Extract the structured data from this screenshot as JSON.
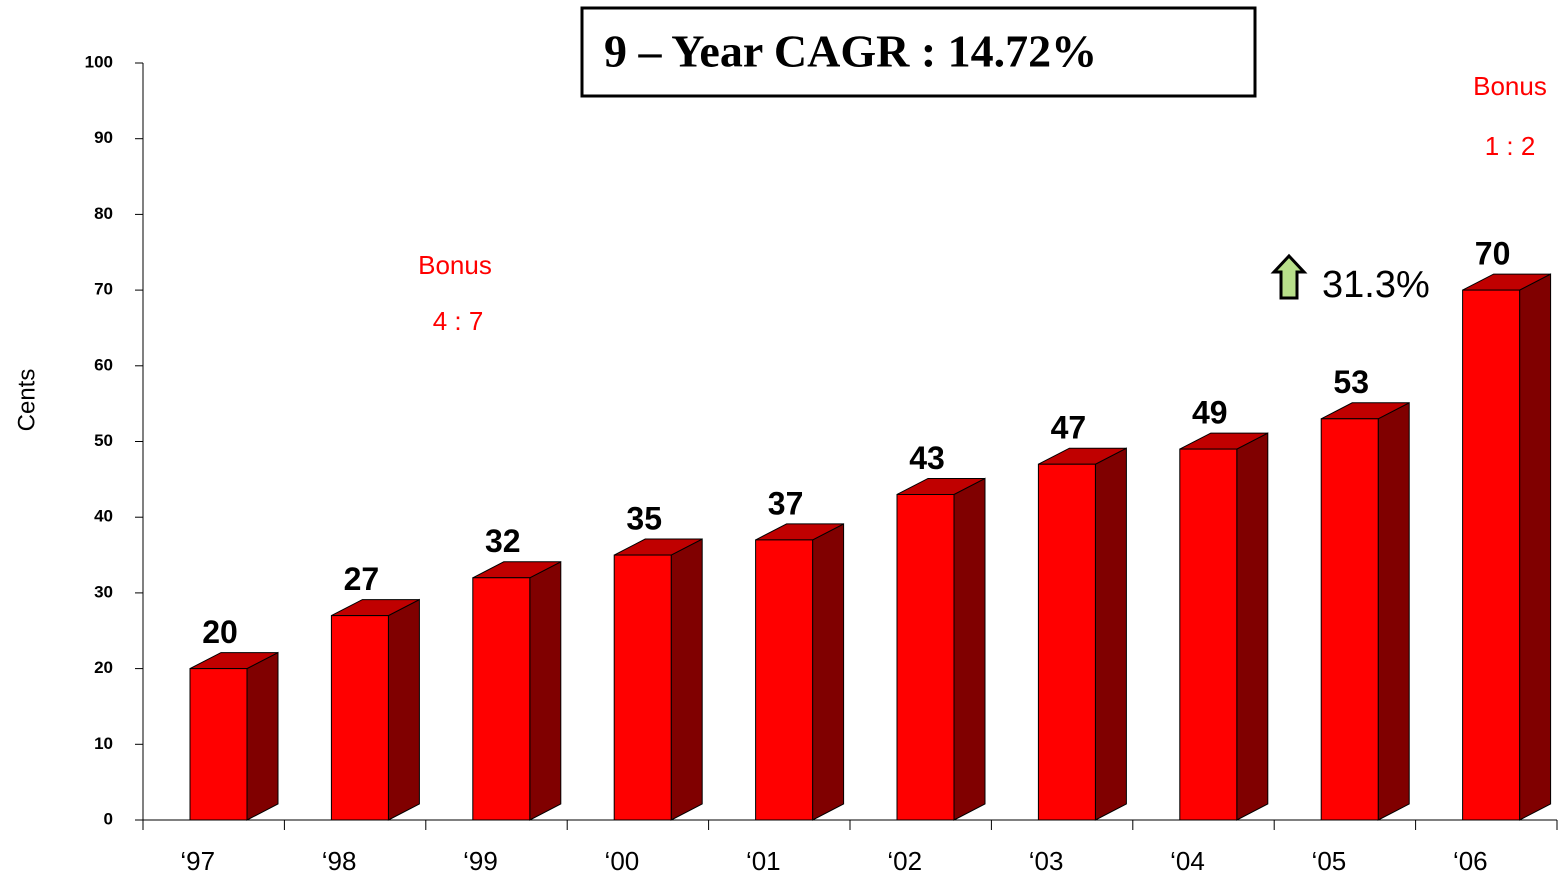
{
  "chart_data": {
    "type": "bar3d",
    "title": "9 – Year CAGR : 14.72%",
    "y_label": "Cents",
    "categories": [
      "‘97",
      "‘98",
      "‘99",
      "‘00",
      "‘01",
      "‘02",
      "‘03",
      "‘04",
      "‘05",
      "‘06"
    ],
    "values": [
      20,
      27,
      32,
      35,
      37,
      43,
      47,
      49,
      53,
      70
    ],
    "color": "#ff0000",
    "ylim": [
      0,
      100
    ],
    "yticks": [
      0,
      10,
      20,
      30,
      40,
      50,
      60,
      70,
      80,
      90,
      100
    ],
    "annotations": [
      "Bonus",
      "4 : 7",
      "Bonus",
      "1 : 2",
      "31.3%"
    ]
  }
}
